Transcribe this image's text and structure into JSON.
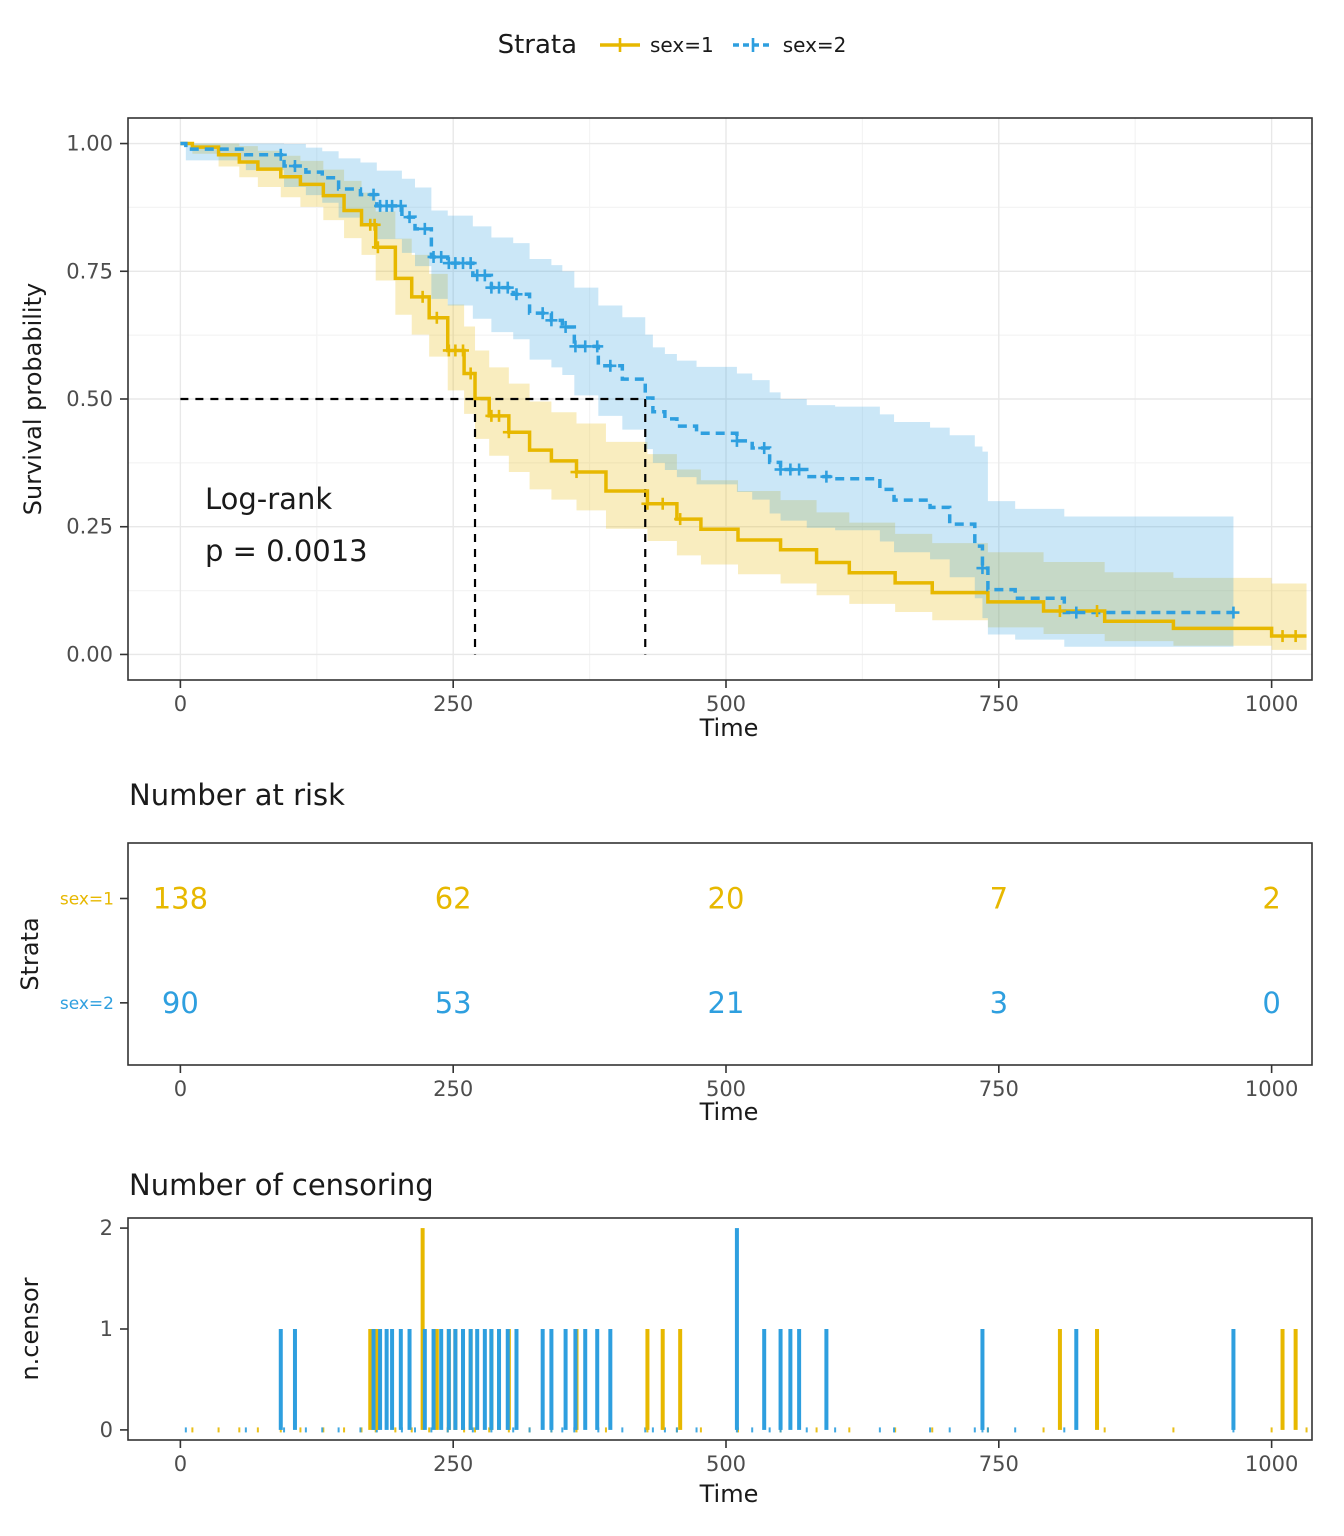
{
  "legend": {
    "title": "Strata",
    "items": [
      {
        "label": "sex=1",
        "color": "#E7B800",
        "linetype": "solid"
      },
      {
        "label": "sex=2",
        "color": "#2E9FDF",
        "linetype": "dashed"
      }
    ]
  },
  "chart_data": [
    {
      "type": "line",
      "id": "km-survival",
      "title": "",
      "xlabel": "Time",
      "ylabel": "Survival probability",
      "xlim": [
        -48,
        1037
      ],
      "ylim": [
        -0.05,
        1.05
      ],
      "xticks": [
        0,
        250,
        500,
        750,
        1000
      ],
      "xtick_labels": [
        "0",
        "250",
        "500",
        "750",
        "1000"
      ],
      "yticks": [
        0,
        0.25,
        0.5,
        0.75,
        1
      ],
      "ytick_labels": [
        "0.00",
        "0.25",
        "0.50",
        "0.75",
        "1.00"
      ],
      "grid": true,
      "annotation": {
        "line1": "Log-rank",
        "line2": "p = 0.0013",
        "x": 20,
        "y1": 0.31,
        "y2": 0.215
      },
      "medians": {
        "y": 0.5,
        "x": [
          270,
          426
        ]
      },
      "series": [
        {
          "name": "sex=1",
          "color": "#E7B800",
          "linetype": "solid",
          "points": [
            [
              0,
              1.0,
              1.0,
              1.0
            ],
            [
              11,
              0.993,
              0.98,
              1.0
            ],
            [
              35,
              0.978,
              0.955,
              1.0
            ],
            [
              54,
              0.964,
              0.934,
              0.995
            ],
            [
              71,
              0.95,
              0.915,
              0.986
            ],
            [
              92,
              0.935,
              0.895,
              0.976
            ],
            [
              110,
              0.92,
              0.876,
              0.966
            ],
            [
              131,
              0.898,
              0.85,
              0.949
            ],
            [
              150,
              0.869,
              0.815,
              0.927
            ],
            [
              166,
              0.841,
              0.782,
              0.904
            ],
            [
              179,
              0.797,
              0.732,
              0.867
            ],
            [
              197,
              0.736,
              0.665,
              0.814
            ],
            [
              212,
              0.7,
              0.626,
              0.782
            ],
            [
              228,
              0.659,
              0.583,
              0.745
            ],
            [
              245,
              0.595,
              0.517,
              0.685
            ],
            [
              260,
              0.55,
              0.471,
              0.642
            ],
            [
              270,
              0.501,
              0.422,
              0.595
            ],
            [
              283,
              0.467,
              0.389,
              0.562
            ],
            [
              301,
              0.435,
              0.357,
              0.53
            ],
            [
              320,
              0.4,
              0.323,
              0.495
            ],
            [
              340,
              0.379,
              0.303,
              0.474
            ],
            [
              363,
              0.357,
              0.282,
              0.452
            ],
            [
              390,
              0.32,
              0.246,
              0.416
            ],
            [
              428,
              0.295,
              0.222,
              0.392
            ],
            [
              455,
              0.265,
              0.194,
              0.362
            ],
            [
              477,
              0.245,
              0.176,
              0.341
            ],
            [
              511,
              0.224,
              0.157,
              0.32
            ],
            [
              550,
              0.205,
              0.139,
              0.302
            ],
            [
              583,
              0.18,
              0.116,
              0.278
            ],
            [
              613,
              0.16,
              0.099,
              0.258
            ],
            [
              655,
              0.14,
              0.083,
              0.236
            ],
            [
              689,
              0.121,
              0.067,
              0.218
            ],
            [
              740,
              0.103,
              0.053,
              0.2
            ],
            [
              791,
              0.085,
              0.04,
              0.181
            ],
            [
              847,
              0.065,
              0.026,
              0.161
            ],
            [
              910,
              0.051,
              0.017,
              0.15
            ],
            [
              1000,
              0.036,
              0.009,
              0.139
            ],
            [
              1032,
              0.036,
              0.009,
              0.139
            ]
          ]
        },
        {
          "name": "sex=2",
          "color": "#2E9FDF",
          "linetype": "dashed",
          "points": [
            [
              0,
              1.0,
              1.0,
              1.0
            ],
            [
              5,
              0.989,
              0.967,
              1.0
            ],
            [
              60,
              0.978,
              0.948,
              1.0
            ],
            [
              95,
              0.956,
              0.915,
              0.999
            ],
            [
              115,
              0.944,
              0.899,
              0.992
            ],
            [
              130,
              0.933,
              0.884,
              0.985
            ],
            [
              145,
              0.911,
              0.855,
              0.971
            ],
            [
              165,
              0.9,
              0.841,
              0.963
            ],
            [
              180,
              0.878,
              0.813,
              0.947
            ],
            [
              203,
              0.856,
              0.786,
              0.931
            ],
            [
              215,
              0.833,
              0.76,
              0.914
            ],
            [
              230,
              0.778,
              0.696,
              0.869
            ],
            [
              245,
              0.766,
              0.683,
              0.859
            ],
            [
              268,
              0.742,
              0.657,
              0.838
            ],
            [
              285,
              0.718,
              0.631,
              0.816
            ],
            [
              305,
              0.705,
              0.617,
              0.805
            ],
            [
              320,
              0.668,
              0.577,
              0.774
            ],
            [
              340,
              0.654,
              0.562,
              0.762
            ],
            [
              350,
              0.641,
              0.547,
              0.75
            ],
            [
              361,
              0.603,
              0.507,
              0.718
            ],
            [
              383,
              0.565,
              0.467,
              0.683
            ],
            [
              405,
              0.539,
              0.44,
              0.66
            ],
            [
              426,
              0.502,
              0.402,
              0.626
            ],
            [
              433,
              0.475,
              0.375,
              0.601
            ],
            [
              444,
              0.461,
              0.361,
              0.588
            ],
            [
              455,
              0.447,
              0.347,
              0.575
            ],
            [
              473,
              0.433,
              0.333,
              0.563
            ],
            [
              510,
              0.418,
              0.318,
              0.55
            ],
            [
              524,
              0.404,
              0.303,
              0.537
            ],
            [
              540,
              0.376,
              0.276,
              0.513
            ],
            [
              550,
              0.362,
              0.262,
              0.5
            ],
            [
              574,
              0.348,
              0.248,
              0.488
            ],
            [
              600,
              0.344,
              0.243,
              0.485
            ],
            [
              641,
              0.323,
              0.221,
              0.47
            ],
            [
              654,
              0.302,
              0.2,
              0.455
            ],
            [
              687,
              0.288,
              0.186,
              0.444
            ],
            [
              705,
              0.255,
              0.151,
              0.429
            ],
            [
              728,
              0.212,
              0.11,
              0.407
            ],
            [
              735,
              0.169,
              0.071,
              0.397
            ],
            [
              740,
              0.127,
              0.039,
              0.3
            ],
            [
              765,
              0.11,
              0.029,
              0.285
            ],
            [
              810,
              0.082,
              0.015,
              0.27
            ],
            [
              965,
              0.082,
              0.015,
              0.27
            ]
          ]
        }
      ]
    },
    {
      "type": "table",
      "id": "risk-table",
      "title": "Number at risk",
      "xlabel": "Time",
      "ylabel": "Strata",
      "at": [
        0,
        250,
        500,
        750,
        1000
      ],
      "rows": [
        {
          "label": "sex=1",
          "color": "#E7B800",
          "values": [
            "138",
            "62",
            "20",
            "7",
            "2"
          ]
        },
        {
          "label": "sex=2",
          "color": "#2E9FDF",
          "values": [
            "90",
            "53",
            "21",
            "3",
            "0"
          ]
        }
      ]
    },
    {
      "type": "bar",
      "id": "censor-plot",
      "title": "Number of censoring",
      "xlabel": "Time",
      "ylabel": "n.censor",
      "yticks": [
        0,
        1,
        2
      ],
      "ytick_labels": [
        "0",
        "1",
        "2"
      ],
      "ylim": [
        -0.1,
        2.1
      ],
      "series": [
        {
          "name": "sex=1",
          "color": "#E7B800",
          "bars": [
            [
              174,
              1
            ],
            [
              178,
              1
            ],
            [
              181,
              1
            ],
            [
              222,
              2
            ],
            [
              235,
              1
            ],
            [
              246,
              1
            ],
            [
              252,
              1
            ],
            [
              259,
              1
            ],
            [
              266,
              1
            ],
            [
              285,
              1
            ],
            [
              292,
              1
            ],
            [
              301,
              1
            ],
            [
              363,
              1
            ],
            [
              428,
              1
            ],
            [
              442,
              1
            ],
            [
              458,
              1
            ],
            [
              806,
              1
            ],
            [
              840,
              1
            ],
            [
              1010,
              1
            ],
            [
              1022,
              1
            ]
          ]
        },
        {
          "name": "sex=2",
          "color": "#2E9FDF",
          "bars": [
            [
              92,
              1
            ],
            [
              105,
              1
            ],
            [
              177,
              1
            ],
            [
              183,
              1
            ],
            [
              189,
              1
            ],
            [
              194,
              1
            ],
            [
              202,
              1
            ],
            [
              210,
              1
            ],
            [
              224,
              1
            ],
            [
              232,
              1
            ],
            [
              239,
              1
            ],
            [
              246,
              1
            ],
            [
              252,
              1
            ],
            [
              259,
              1
            ],
            [
              266,
              1
            ],
            [
              272,
              1
            ],
            [
              279,
              1
            ],
            [
              285,
              1
            ],
            [
              292,
              1
            ],
            [
              300,
              1
            ],
            [
              308,
              1
            ],
            [
              332,
              1
            ],
            [
              340,
              1
            ],
            [
              353,
              1
            ],
            [
              362,
              1
            ],
            [
              371,
              1
            ],
            [
              382,
              1
            ],
            [
              394,
              1
            ],
            [
              510,
              2
            ],
            [
              535,
              1
            ],
            [
              550,
              1
            ],
            [
              559,
              1
            ],
            [
              567,
              1
            ],
            [
              592,
              1
            ],
            [
              735,
              1
            ],
            [
              821,
              1
            ],
            [
              965,
              1
            ]
          ]
        }
      ]
    }
  ]
}
